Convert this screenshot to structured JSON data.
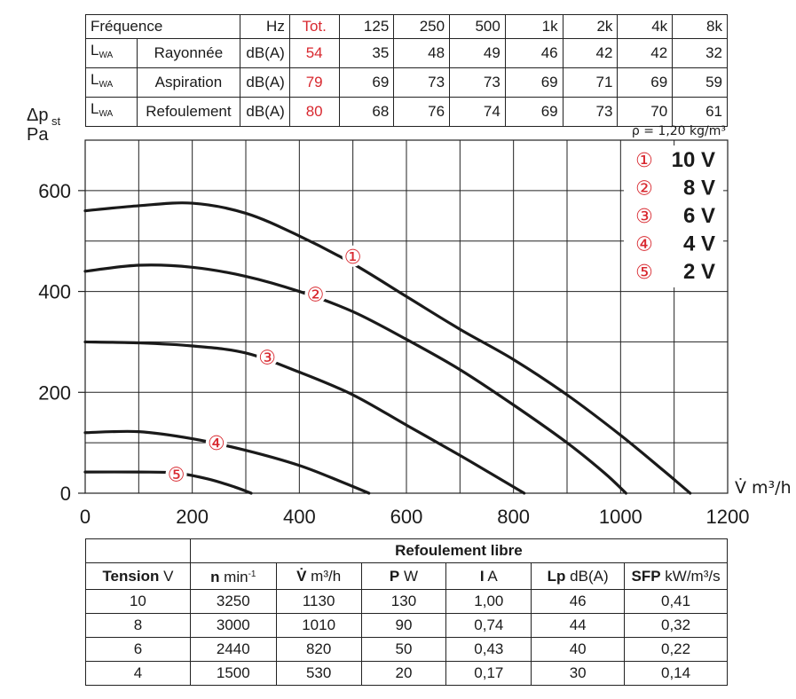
{
  "sound_table": {
    "header": {
      "label": "Fréquence",
      "unit": "Hz",
      "tot": "Tot.",
      "bands": [
        "125",
        "250",
        "500",
        "1k",
        "2k",
        "4k",
        "8k"
      ]
    },
    "rows": [
      {
        "sym": "L",
        "sym_sub": "WA",
        "name": "Rayonnée",
        "unit": "dB(A)",
        "tot": "54",
        "values": [
          "35",
          "48",
          "49",
          "46",
          "42",
          "42",
          "32"
        ]
      },
      {
        "sym": "L",
        "sym_sub": "WA",
        "name": "Aspiration",
        "unit": "dB(A)",
        "tot": "79",
        "values": [
          "69",
          "73",
          "73",
          "69",
          "71",
          "69",
          "59"
        ]
      },
      {
        "sym": "L",
        "sym_sub": "WA",
        "name": "Refoulement",
        "unit": "dB(A)",
        "tot": "80",
        "values": [
          "68",
          "76",
          "74",
          "69",
          "73",
          "70",
          "61"
        ]
      }
    ]
  },
  "chart_data": {
    "type": "line",
    "ylabel_line1": "Δp",
    "ylabel_sub": "st",
    "ylabel_line2": "Pa",
    "xlabel": "V̇ m³/h",
    "density_note": "ρ = 1,20 kg/m³",
    "xlim": [
      0,
      1200
    ],
    "ylim": [
      0,
      700
    ],
    "x_ticks": [
      0,
      200,
      400,
      600,
      800,
      1000,
      1200
    ],
    "y_ticks": [
      0,
      200,
      400,
      600
    ],
    "grid": true,
    "colors": {
      "curve": "#1a1a1a",
      "marker": "#d8282f",
      "grid": "#222222"
    },
    "series": [
      {
        "name": "10 V",
        "marker": "①",
        "marker_at": [
          500,
          470
        ],
        "points": [
          [
            0,
            560
          ],
          [
            100,
            570
          ],
          [
            200,
            575
          ],
          [
            300,
            555
          ],
          [
            400,
            510
          ],
          [
            500,
            455
          ],
          [
            600,
            390
          ],
          [
            700,
            325
          ],
          [
            800,
            265
          ],
          [
            900,
            195
          ],
          [
            1000,
            115
          ],
          [
            1080,
            45
          ],
          [
            1130,
            0
          ]
        ]
      },
      {
        "name": "8 V",
        "marker": "②",
        "marker_at": [
          430,
          395
        ],
        "points": [
          [
            0,
            440
          ],
          [
            100,
            452
          ],
          [
            200,
            448
          ],
          [
            300,
            430
          ],
          [
            400,
            400
          ],
          [
            500,
            360
          ],
          [
            600,
            305
          ],
          [
            700,
            245
          ],
          [
            800,
            175
          ],
          [
            900,
            100
          ],
          [
            970,
            40
          ],
          [
            1010,
            0
          ]
        ]
      },
      {
        "name": "6 V",
        "marker": "③",
        "marker_at": [
          340,
          270
        ],
        "points": [
          [
            0,
            300
          ],
          [
            100,
            298
          ],
          [
            200,
            292
          ],
          [
            300,
            278
          ],
          [
            400,
            240
          ],
          [
            500,
            195
          ],
          [
            600,
            135
          ],
          [
            700,
            75
          ],
          [
            780,
            25
          ],
          [
            820,
            0
          ]
        ]
      },
      {
        "name": "4 V",
        "marker": "④",
        "marker_at": [
          245,
          100
        ],
        "points": [
          [
            0,
            120
          ],
          [
            100,
            122
          ],
          [
            200,
            108
          ],
          [
            300,
            85
          ],
          [
            400,
            55
          ],
          [
            480,
            22
          ],
          [
            530,
            0
          ]
        ]
      },
      {
        "name": "2 V",
        "marker": "⑤",
        "marker_at": [
          170,
          38
        ],
        "points": [
          [
            0,
            42
          ],
          [
            100,
            42
          ],
          [
            170,
            40
          ],
          [
            230,
            28
          ],
          [
            280,
            12
          ],
          [
            310,
            0
          ]
        ]
      }
    ],
    "legend": [
      {
        "marker": "①",
        "label": "10 V"
      },
      {
        "marker": "②",
        "label": "8 V"
      },
      {
        "marker": "③",
        "label": "6 V"
      },
      {
        "marker": "④",
        "label": "4 V"
      },
      {
        "marker": "⑤",
        "label": "2 V"
      }
    ],
    "legend_position": "top-right"
  },
  "perf_table": {
    "group_title": "Refoulement libre",
    "headers": [
      {
        "bold": "Tension",
        "unit": " V"
      },
      {
        "bold": "n",
        "unit": " min",
        "sup": "-1"
      },
      {
        "bold": "V̇",
        "unit": " m³/h"
      },
      {
        "bold": "P",
        "unit": " W"
      },
      {
        "bold": "I",
        "unit": " A"
      },
      {
        "bold": "Lp",
        "unit": " dB(A)"
      },
      {
        "bold": "SFP",
        "unit": " kW/m³/s"
      }
    ],
    "rows": [
      [
        "10",
        "3250",
        "1130",
        "130",
        "1,00",
        "46",
        "0,41"
      ],
      [
        "8",
        "3000",
        "1010",
        "90",
        "0,74",
        "44",
        "0,32"
      ],
      [
        "6",
        "2440",
        "820",
        "50",
        "0,43",
        "40",
        "0,22"
      ],
      [
        "4",
        "1500",
        "530",
        "20",
        "0,17",
        "30",
        "0,14"
      ]
    ]
  }
}
